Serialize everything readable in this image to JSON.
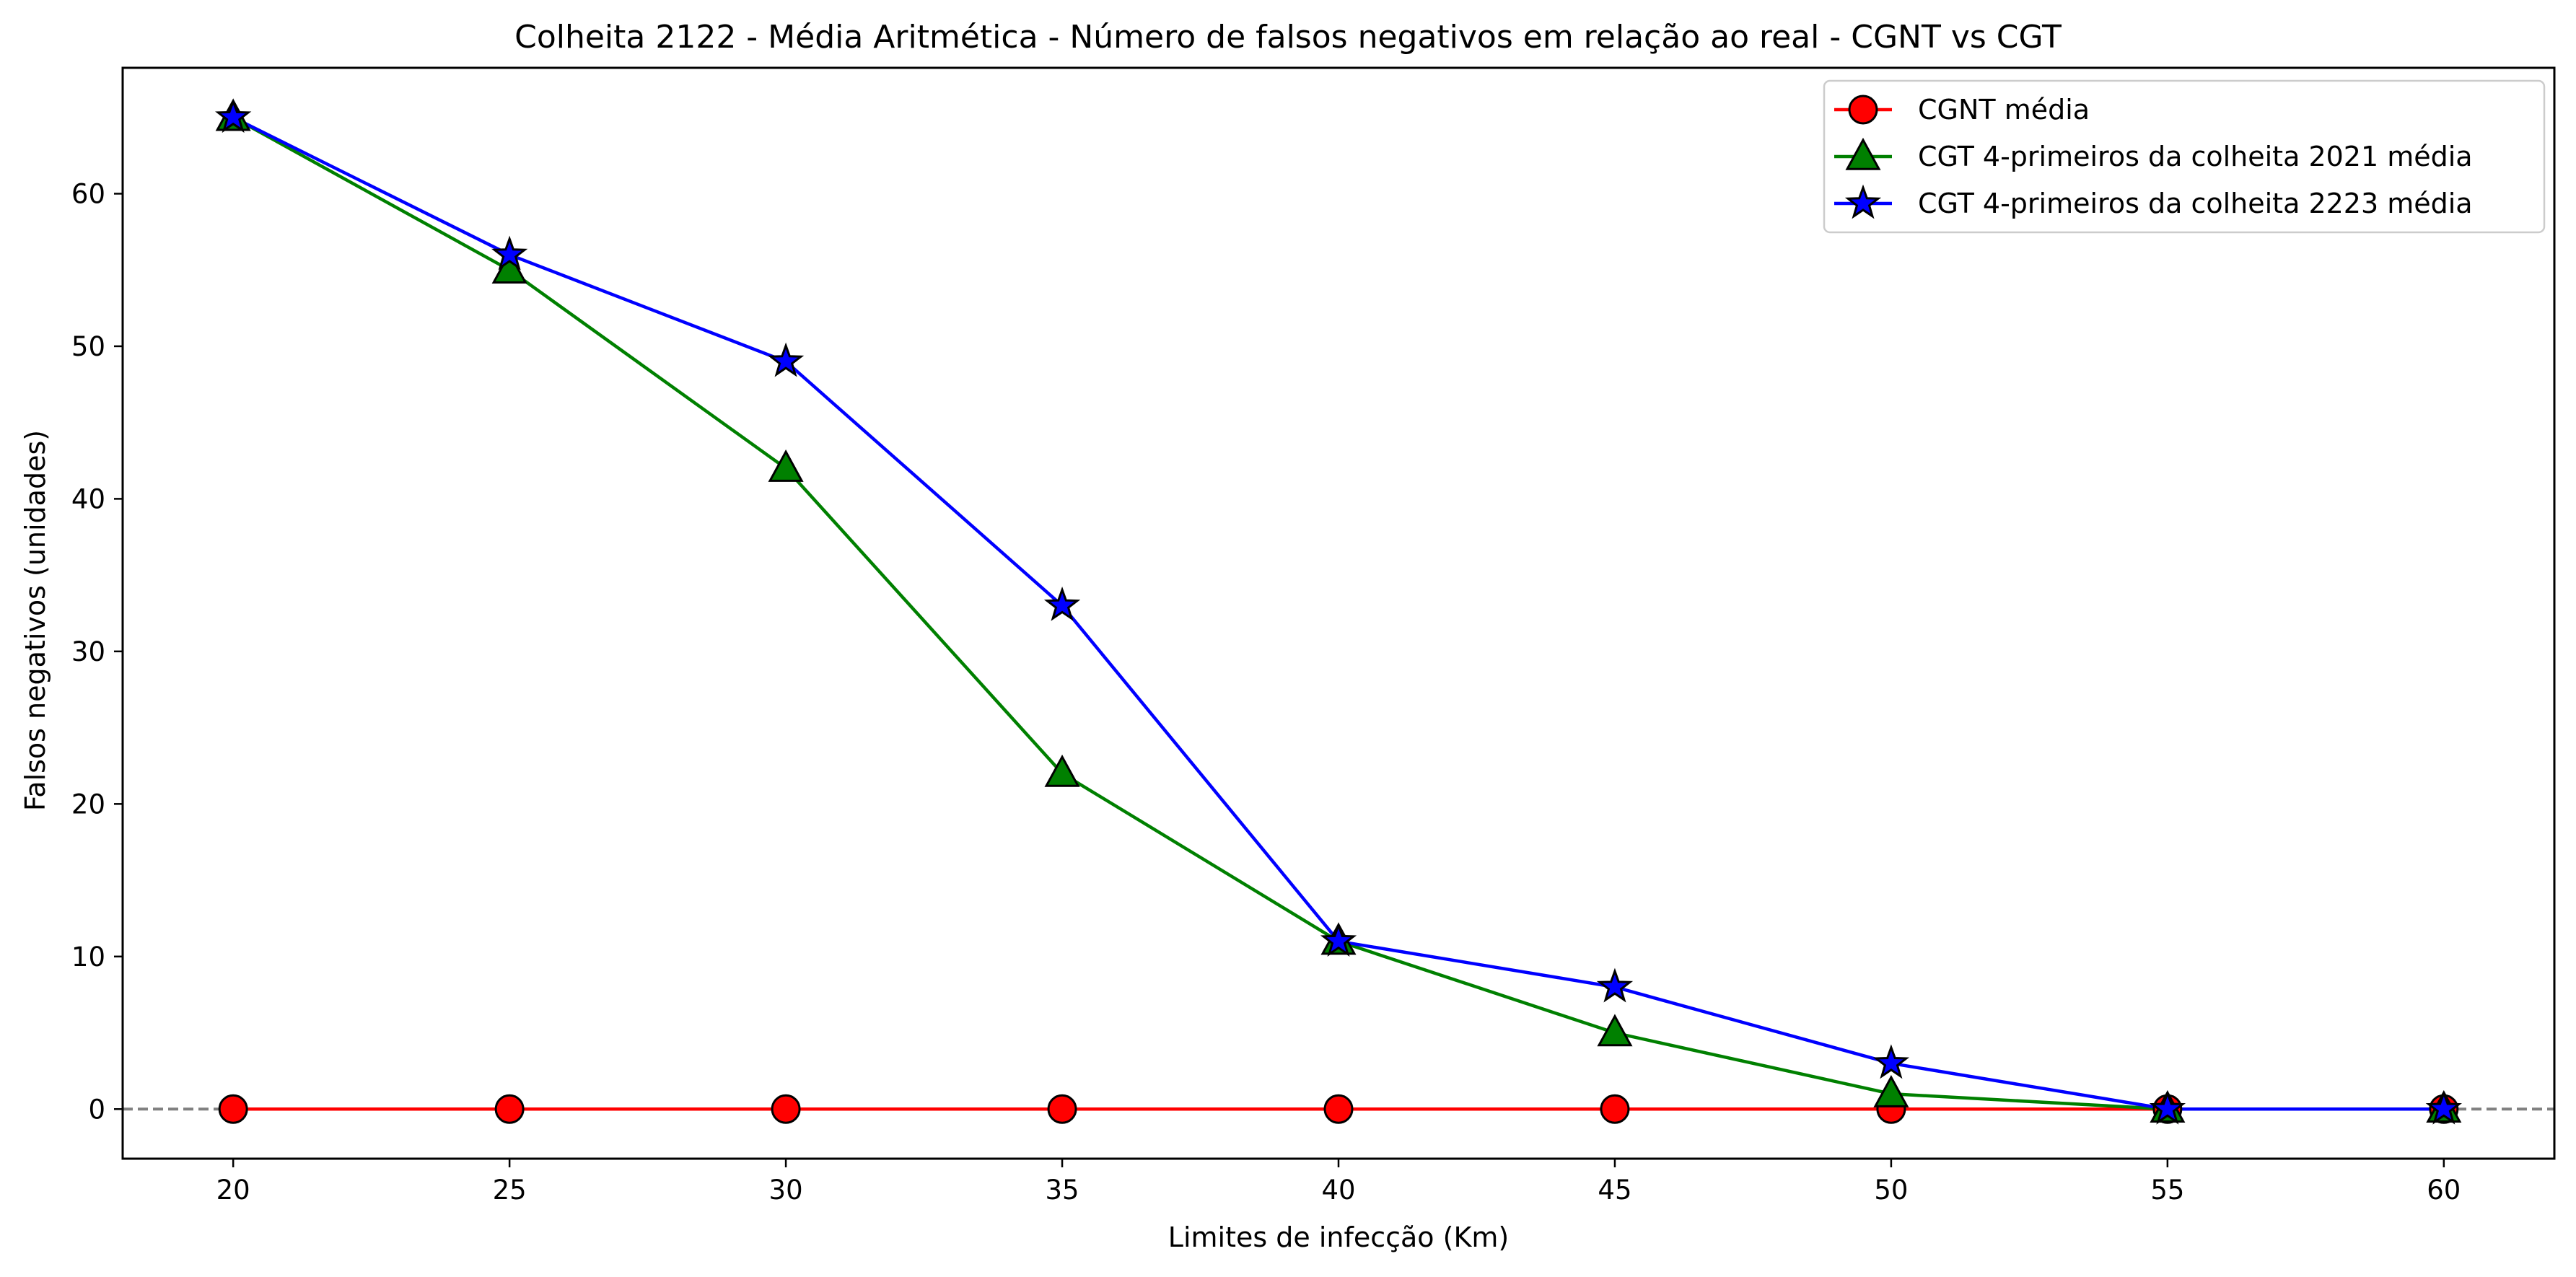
{
  "chart_data": {
    "type": "line",
    "title": "Colheita 2122 - Média Aritmética - Número de falsos negativos em relação ao real - CGNT vs CGT",
    "xlabel": "Limites de infecção (Km)",
    "ylabel": "Falsos negativos (unidades)",
    "x": [
      20,
      25,
      30,
      35,
      40,
      45,
      50,
      55,
      60
    ],
    "x_tick_labels": [
      "20",
      "25",
      "30",
      "35",
      "40",
      "45",
      "50",
      "55",
      "60"
    ],
    "y_tick_values": [
      0,
      10,
      20,
      30,
      40,
      50,
      60
    ],
    "y_tick_labels": [
      "0",
      "10",
      "20",
      "30",
      "40",
      "50",
      "60"
    ],
    "xlim": [
      18,
      62
    ],
    "ylim": [
      -3.25,
      68.25
    ],
    "grid": false,
    "legend_position": "top-right",
    "reference_line": {
      "y": 0,
      "style": "dashed",
      "color": "#808080"
    },
    "series": [
      {
        "name": "CGNT média",
        "color": "#ff0000",
        "marker": "circle",
        "values": [
          0,
          0,
          0,
          0,
          0,
          0,
          0,
          0,
          0
        ]
      },
      {
        "name": "CGT 4-primeiros da colheita 2021 média",
        "color": "#008000",
        "marker": "triangle",
        "values": [
          65,
          55,
          42,
          22,
          11,
          5,
          1,
          0,
          0
        ]
      },
      {
        "name": "CGT 4-primeiros da colheita 2223 média",
        "color": "#0000ff",
        "marker": "star",
        "values": [
          65,
          56,
          49,
          33,
          11,
          8,
          3,
          0,
          0
        ]
      }
    ]
  }
}
